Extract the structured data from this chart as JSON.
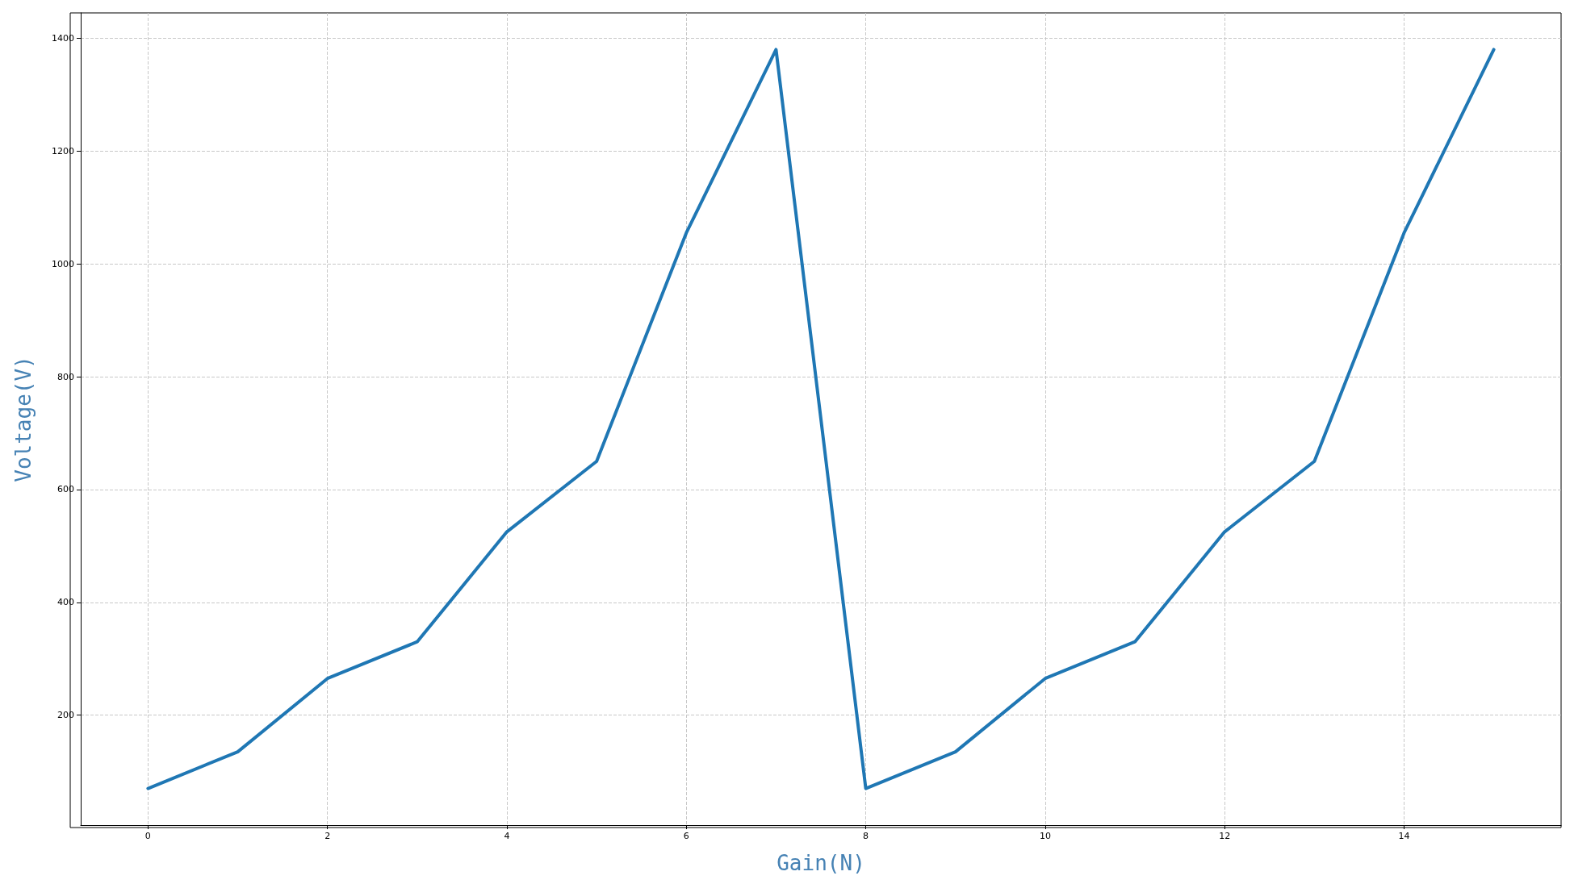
{
  "chart_data": {
    "type": "line",
    "xlabel": "Gain(N)",
    "ylabel": "Voltage(V)",
    "x": [
      0,
      1,
      2,
      3,
      4,
      5,
      6,
      7,
      8,
      9,
      10,
      11,
      12,
      13,
      14,
      15
    ],
    "series": [
      {
        "color": "#1f77b4",
        "values": [
          70,
          135,
          265,
          330,
          525,
          650,
          1055,
          1380,
          70,
          135,
          265,
          330,
          525,
          650,
          1055,
          1380
        ]
      }
    ],
    "xlim": [
      -0.75,
      15.75
    ],
    "xticks": [
      0,
      2,
      4,
      6,
      8,
      10,
      12,
      14
    ],
    "ylim": [
      5,
      1445
    ],
    "yticks": [
      200,
      400,
      600,
      800,
      1000,
      1200,
      1400
    ],
    "grid": true,
    "line_style": "solid"
  }
}
